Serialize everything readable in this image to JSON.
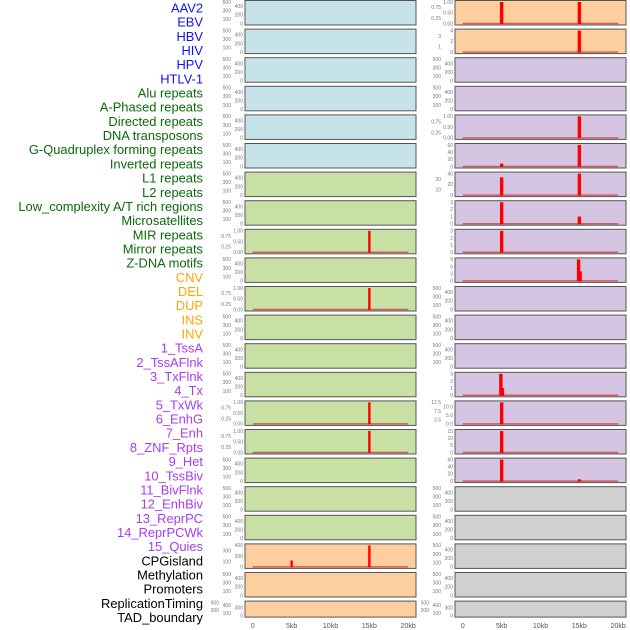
{
  "chart_data": {
    "type": "bar",
    "title": "",
    "xlabel": "",
    "ylabel": "",
    "xlim_kb": [
      -1,
      21
    ],
    "x_ticks": [
      "0",
      "5kb",
      "10kb",
      "15kb",
      "20kb"
    ],
    "x_tick_values_kb": [
      0,
      5,
      10,
      15,
      20
    ],
    "group_colors": {
      "virus": "#1010ff",
      "repeat": "#0a6a0a",
      "sv": "#ffa500",
      "chromhmm": "#a83cf0",
      "other": "#000000"
    },
    "panel_fills": {
      "blue": "#c7e3ea",
      "green": "#c8e0a3",
      "orange": "#fdcf9e",
      "purple": "#d5c5e2",
      "gray": "#d0d0d0"
    },
    "bar_color": "#ff0000",
    "labels": [
      {
        "text": "AAV2",
        "group": "virus"
      },
      {
        "text": "EBV",
        "group": "virus"
      },
      {
        "text": "HBV",
        "group": "virus"
      },
      {
        "text": "HIV",
        "group": "virus"
      },
      {
        "text": "HPV",
        "group": "virus"
      },
      {
        "text": "HTLV-1",
        "group": "virus"
      },
      {
        "text": "Alu repeats",
        "group": "repeat"
      },
      {
        "text": "A-Phased repeats",
        "group": "repeat"
      },
      {
        "text": "Directed repeats",
        "group": "repeat"
      },
      {
        "text": "DNA transposons",
        "group": "repeat"
      },
      {
        "text": "G-Quadruplex forming repeats",
        "group": "repeat"
      },
      {
        "text": "Inverted repeats",
        "group": "repeat"
      },
      {
        "text": "L1 repeats",
        "group": "repeat"
      },
      {
        "text": "L2 repeats",
        "group": "repeat"
      },
      {
        "text": "Low_complexity A/T rich regions",
        "group": "repeat"
      },
      {
        "text": "Microsatellites",
        "group": "repeat"
      },
      {
        "text": "MIR repeats",
        "group": "repeat"
      },
      {
        "text": "Mirror repeats",
        "group": "repeat"
      },
      {
        "text": "Z-DNA motifs",
        "group": "repeat"
      },
      {
        "text": "CNV",
        "group": "sv"
      },
      {
        "text": "DEL",
        "group": "sv"
      },
      {
        "text": "DUP",
        "group": "sv"
      },
      {
        "text": "INS",
        "group": "sv"
      },
      {
        "text": "INV",
        "group": "sv"
      },
      {
        "text": "1_TssA",
        "group": "chromhmm"
      },
      {
        "text": "2_TssAFlnk",
        "group": "chromhmm"
      },
      {
        "text": "3_TxFlnk",
        "group": "chromhmm"
      },
      {
        "text": "4_Tx",
        "group": "chromhmm"
      },
      {
        "text": "5_TxWk",
        "group": "chromhmm"
      },
      {
        "text": "6_EnhG",
        "group": "chromhmm"
      },
      {
        "text": "7_Enh",
        "group": "chromhmm"
      },
      {
        "text": "8_ZNF_Rpts",
        "group": "chromhmm"
      },
      {
        "text": "9_Het",
        "group": "chromhmm"
      },
      {
        "text": "10_TssBiv",
        "group": "chromhmm"
      },
      {
        "text": "11_BivFlnk",
        "group": "chromhmm"
      },
      {
        "text": "12_EnhBiv",
        "group": "chromhmm"
      },
      {
        "text": "13_ReprPC",
        "group": "chromhmm"
      },
      {
        "text": "14_ReprPCWk",
        "group": "chromhmm"
      },
      {
        "text": "15_Quies",
        "group": "chromhmm"
      },
      {
        "text": "CPGisland",
        "group": "other"
      },
      {
        "text": "Methylation",
        "group": "other"
      },
      {
        "text": "Promoters",
        "group": "other"
      },
      {
        "text": "ReplicationTiming",
        "group": "other"
      },
      {
        "text": "TAD_boundary",
        "group": "other"
      }
    ],
    "columns": [
      {
        "name": "left",
        "panels": [
          {
            "fill": "blue",
            "yticks": [
              "0",
              "100",
              "200",
              "300",
              "400",
              "500"
            ],
            "ymax": 500,
            "bars": []
          },
          {
            "fill": "blue",
            "yticks": [
              "0",
              "100",
              "200",
              "300",
              "400",
              "500"
            ],
            "ymax": 500,
            "bars": []
          },
          {
            "fill": "blue",
            "yticks": [
              "0",
              "100",
              "200",
              "300",
              "400",
              "500"
            ],
            "ymax": 500,
            "bars": []
          },
          {
            "fill": "blue",
            "yticks": [
              "0",
              "100",
              "200",
              "300",
              "400",
              "500"
            ],
            "ymax": 500,
            "bars": []
          },
          {
            "fill": "blue",
            "yticks": [
              "0",
              "100",
              "200",
              "300",
              "400",
              "500"
            ],
            "ymax": 500,
            "bars": []
          },
          {
            "fill": "blue",
            "yticks": [
              "0",
              "100",
              "200",
              "300",
              "400",
              "500"
            ],
            "ymax": 500,
            "bars": []
          },
          {
            "fill": "green",
            "yticks": [
              "0",
              "100",
              "200",
              "300",
              "400",
              "500"
            ],
            "ymax": 500,
            "bars": []
          },
          {
            "fill": "green",
            "yticks": [
              "0",
              "100",
              "200",
              "300",
              "400",
              "500"
            ],
            "ymax": 500,
            "bars": []
          },
          {
            "fill": "green",
            "yticks": [
              "0.00",
              "0.25",
              "0.50",
              "0.75",
              "1.00"
            ],
            "ymax": 1,
            "bars": [
              [
                15,
                1
              ]
            ]
          },
          {
            "fill": "green",
            "yticks": [
              "0",
              "100",
              "200",
              "300",
              "400",
              "500"
            ],
            "ymax": 500,
            "bars": []
          },
          {
            "fill": "green",
            "yticks": [
              "0.00",
              "0.25",
              "0.50",
              "0.75",
              "1.00"
            ],
            "ymax": 1,
            "bars": [
              [
                15,
                1
              ]
            ]
          },
          {
            "fill": "green",
            "yticks": [
              "0",
              "100",
              "200",
              "300",
              "400",
              "500"
            ],
            "ymax": 500,
            "bars": []
          },
          {
            "fill": "green",
            "yticks": [
              "0",
              "100",
              "200",
              "300",
              "400",
              "500"
            ],
            "ymax": 500,
            "bars": []
          },
          {
            "fill": "green",
            "yticks": [
              "0",
              "100",
              "200",
              "300",
              "400",
              "500"
            ],
            "ymax": 500,
            "bars": []
          },
          {
            "fill": "green",
            "yticks": [
              "0.00",
              "0.25",
              "0.50",
              "0.75",
              "1.00"
            ],
            "ymax": 1,
            "bars": [
              [
                15,
                1
              ]
            ]
          },
          {
            "fill": "green",
            "yticks": [
              "0.00",
              "0.25",
              "0.50",
              "0.75",
              "1.00"
            ],
            "ymax": 1,
            "bars": [
              [
                15,
                1
              ]
            ]
          },
          {
            "fill": "green",
            "yticks": [
              "0",
              "100",
              "200",
              "300",
              "400",
              "500"
            ],
            "ymax": 500,
            "bars": []
          },
          {
            "fill": "green",
            "yticks": [
              "0",
              "100",
              "200",
              "300",
              "400",
              "500"
            ],
            "ymax": 500,
            "bars": []
          },
          {
            "fill": "green",
            "yticks": [
              "0",
              "100",
              "200",
              "300",
              "400",
              "500"
            ],
            "ymax": 500,
            "bars": []
          },
          {
            "fill": "orange",
            "yticks": [
              "0",
              "100",
              "200",
              "300",
              "400"
            ],
            "ymax": 400,
            "bars": [
              [
                5,
                120
              ],
              [
                15,
                400
              ]
            ]
          },
          {
            "fill": "orange",
            "yticks": [
              "0",
              "100",
              "200",
              "300",
              "400",
              "500"
            ],
            "ymax": 500,
            "bars": []
          },
          {
            "fill": "orange",
            "yticks": [
              "0",
              "100",
              "200",
              "300",
              "400",
              "500"
            ],
            "ymax": 500,
            "bars": []
          }
        ]
      },
      {
        "name": "right",
        "panels": [
          {
            "fill": "orange",
            "yticks": [
              "0.00",
              "0.25",
              "0.50",
              "0.75",
              "1.00"
            ],
            "ymax": 1,
            "bars": [
              [
                5,
                1
              ],
              [
                15,
                1
              ]
            ]
          },
          {
            "fill": "orange",
            "yticks": [
              "0",
              "1",
              "2",
              "3",
              "4"
            ],
            "ymax": 4,
            "bars": [
              [
                15,
                4
              ]
            ]
          },
          {
            "fill": "purple",
            "yticks": [
              "0",
              "100",
              "200",
              "300",
              "400",
              "500"
            ],
            "ymax": 500,
            "bars": []
          },
          {
            "fill": "purple",
            "yticks": [
              "0",
              "100",
              "200",
              "300",
              "400",
              "500"
            ],
            "ymax": 500,
            "bars": []
          },
          {
            "fill": "purple",
            "yticks": [
              "0.00",
              "0.25",
              "0.50",
              "0.75",
              "1.00"
            ],
            "ymax": 1,
            "bars": [
              [
                15,
                1
              ]
            ]
          },
          {
            "fill": "purple",
            "yticks": [
              "0",
              "20",
              "40",
              "60"
            ],
            "ymax": 72,
            "bars": [
              [
                5,
                8
              ],
              [
                15,
                72
              ]
            ]
          },
          {
            "fill": "purple",
            "yticks": [
              "0",
              "10",
              "20",
              "30",
              "40"
            ],
            "ymax": 46,
            "bars": [
              [
                5,
                33
              ],
              [
                15,
                46
              ]
            ]
          },
          {
            "fill": "purple",
            "yticks": [
              "0",
              "1",
              "2",
              "3"
            ],
            "ymax": 3,
            "bars": [
              [
                5,
                3
              ],
              [
                15,
                1
              ]
            ]
          },
          {
            "fill": "purple",
            "yticks": [
              "0",
              "1",
              "2",
              "3"
            ],
            "ymax": 3,
            "bars": [
              [
                5,
                3
              ]
            ]
          },
          {
            "fill": "purple",
            "yticks": [
              "0",
              "3",
              "6",
              "9"
            ],
            "ymax": 11,
            "bars": [
              [
                14.9,
                11
              ],
              [
                15.1,
                4
              ]
            ]
          },
          {
            "fill": "purple",
            "yticks": [
              "0",
              "100",
              "200",
              "300",
              "400",
              "500"
            ],
            "ymax": 500,
            "bars": []
          },
          {
            "fill": "purple",
            "yticks": [
              "0",
              "100",
              "200",
              "300",
              "400",
              "500"
            ],
            "ymax": 500,
            "bars": []
          },
          {
            "fill": "purple",
            "yticks": [
              "0",
              "100",
              "200",
              "300",
              "400",
              "500"
            ],
            "ymax": 500,
            "bars": []
          },
          {
            "fill": "purple",
            "yticks": [
              "0",
              "1",
              "2",
              "3"
            ],
            "ymax": 3,
            "bars": [
              [
                4.9,
                3
              ],
              [
                5.1,
                1
              ]
            ]
          },
          {
            "fill": "purple",
            "yticks": [
              "0.0",
              "2.5",
              "5.0",
              "7.5",
              "10.0",
              "12.5"
            ],
            "ymax": 12.5,
            "bars": [
              [
                5,
                12.5
              ]
            ]
          },
          {
            "fill": "purple",
            "yticks": [
              "0",
              "5",
              "10",
              "15"
            ],
            "ymax": 18,
            "bars": [
              [
                5,
                18
              ]
            ]
          },
          {
            "fill": "purple",
            "yticks": [
              "0",
              "20",
              "40",
              "60"
            ],
            "ymax": 60,
            "bars": [
              [
                5,
                60
              ],
              [
                15,
                5
              ]
            ]
          },
          {
            "fill": "gray",
            "yticks": [
              "0",
              "100",
              "200",
              "300",
              "400",
              "500"
            ],
            "ymax": 500,
            "bars": []
          },
          {
            "fill": "gray",
            "yticks": [
              "0",
              "100",
              "200",
              "300",
              "400",
              "500"
            ],
            "ymax": 500,
            "bars": []
          },
          {
            "fill": "gray",
            "yticks": [
              "0",
              "100",
              "200",
              "300",
              "400",
              "500"
            ],
            "ymax": 500,
            "bars": []
          },
          {
            "fill": "gray",
            "yticks": [
              "0",
              "100",
              "200",
              "300",
              "400",
              "500"
            ],
            "ymax": 500,
            "bars": []
          },
          {
            "fill": "gray",
            "yticks": [
              "0",
              "100",
              "200",
              "300",
              "400",
              "500"
            ],
            "ymax": 500,
            "bars": []
          }
        ]
      }
    ]
  }
}
